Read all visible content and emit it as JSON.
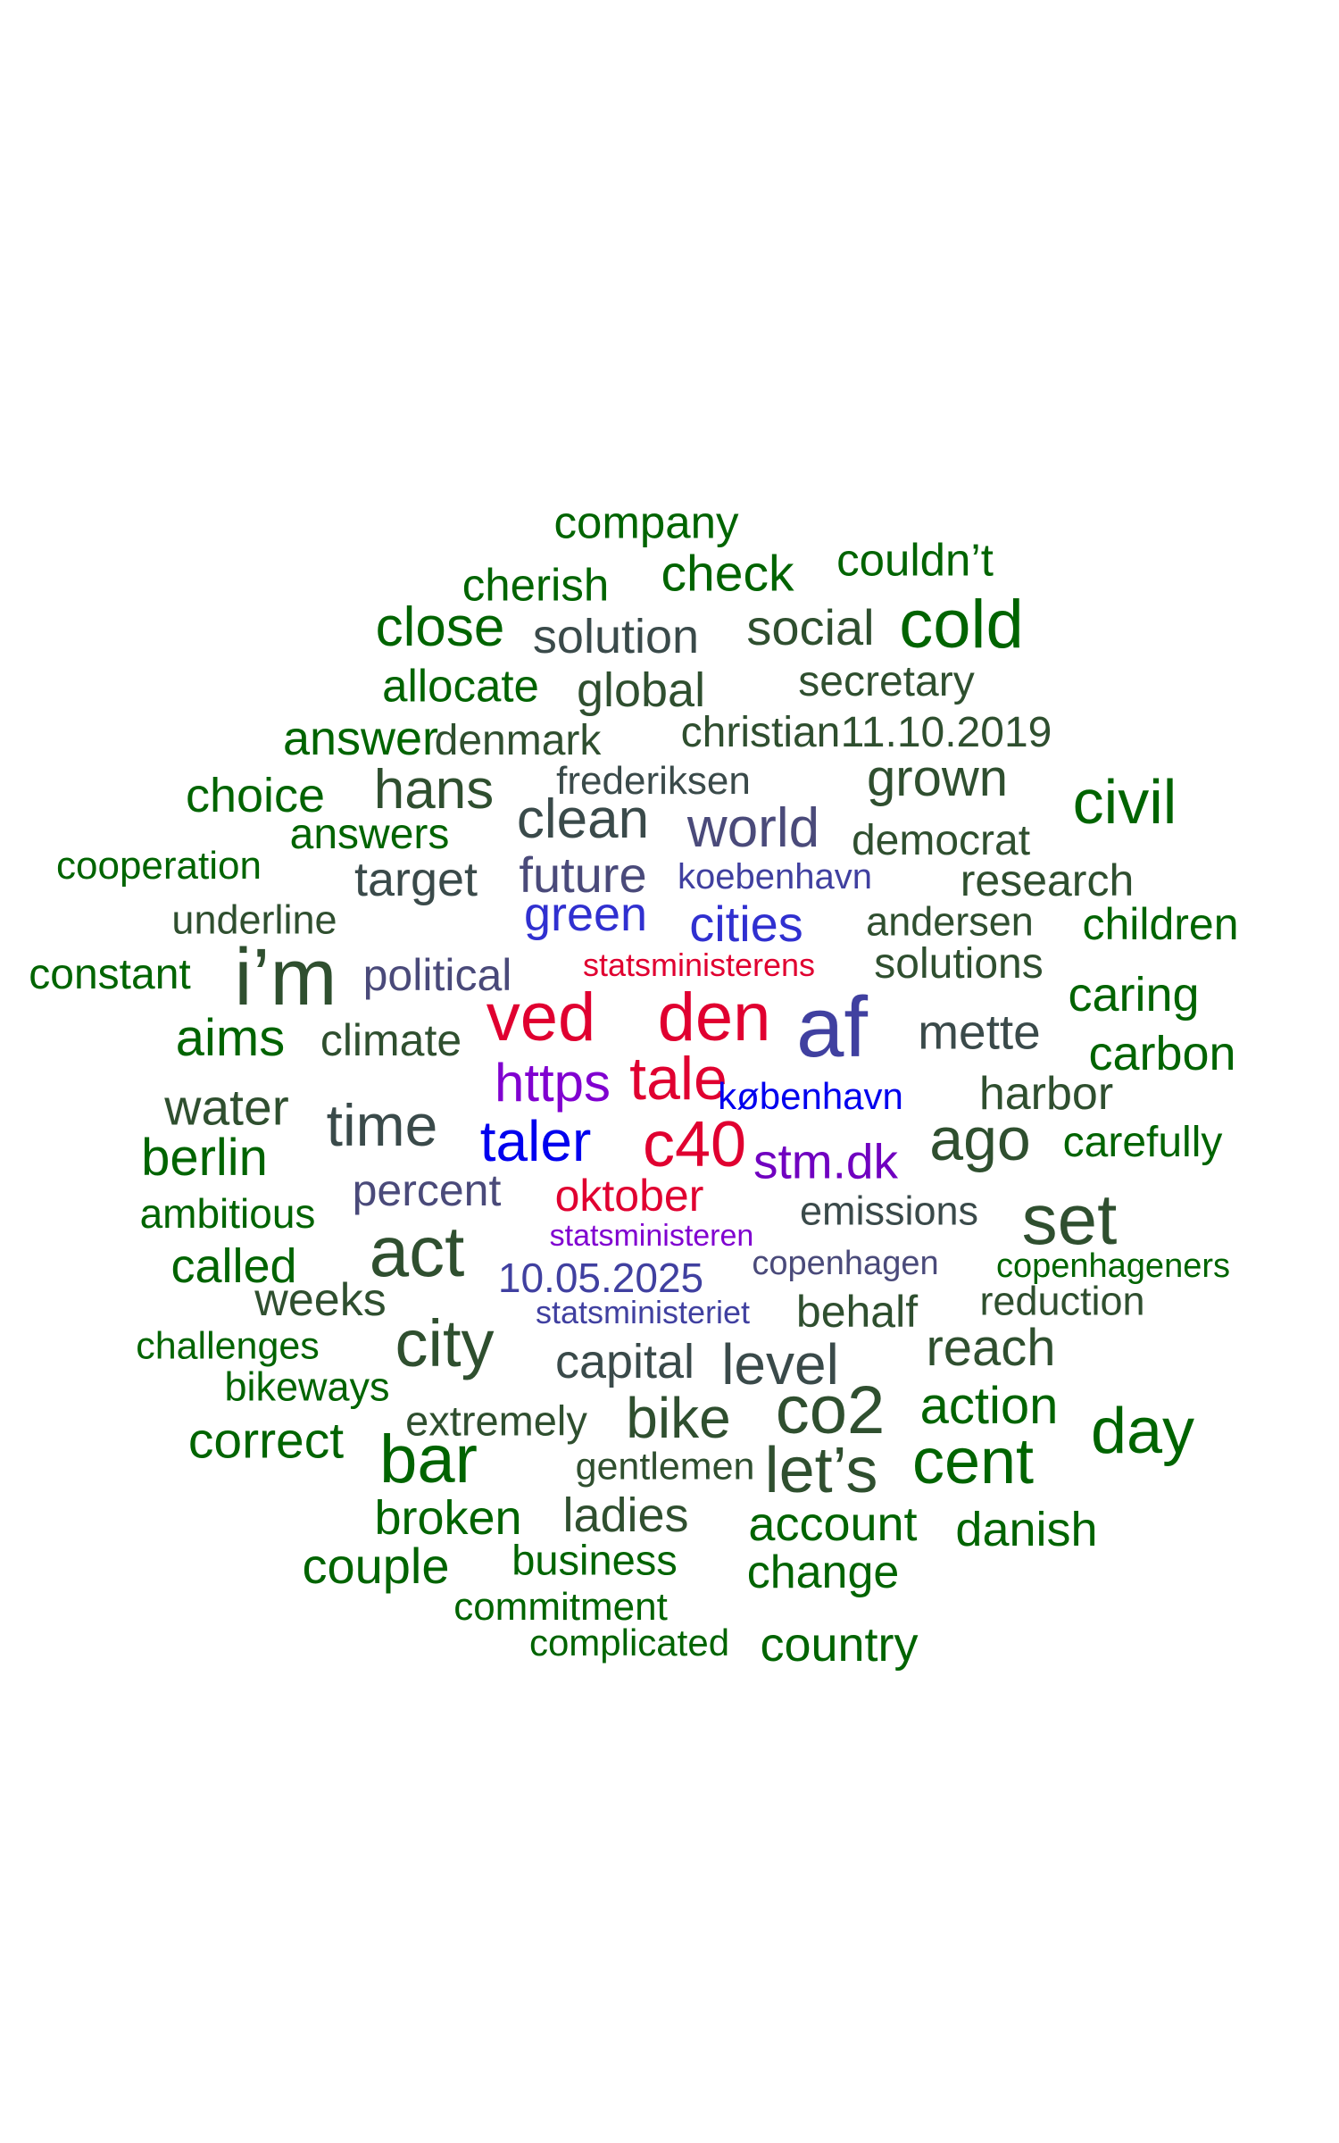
{
  "palette": {
    "dark_green": "#006400",
    "slate_green": "#2f4f2f",
    "slate": "#3a4a4a",
    "navy_slate": "#4a4a7a",
    "indigo": "#4040a0",
    "royal_blue": "#3030d0",
    "blue": "#0000ee",
    "violet": "#8000d0",
    "purple": "#7000c0",
    "red": "#e00030"
  },
  "words": [
    {
      "text": "company",
      "color": "#006400"
    },
    {
      "text": "cherish",
      "color": "#006400"
    },
    {
      "text": "check",
      "color": "#006400"
    },
    {
      "text": "couldn’t",
      "color": "#006400"
    },
    {
      "text": "close",
      "color": "#006400"
    },
    {
      "text": "solution",
      "color": "#3a4a4a"
    },
    {
      "text": "social",
      "color": "#2f4f2f"
    },
    {
      "text": "cold",
      "color": "#006400"
    },
    {
      "text": "allocate",
      "color": "#006400"
    },
    {
      "text": "global",
      "color": "#2f4f2f"
    },
    {
      "text": "secretary",
      "color": "#2f4f2f"
    },
    {
      "text": "answer",
      "color": "#006400"
    },
    {
      "text": "denmark",
      "color": "#2f4f2f"
    },
    {
      "text": "christian",
      "color": "#2f4f2f"
    },
    {
      "text": "11.10.2019",
      "color": "#2f4f2f"
    },
    {
      "text": "choice",
      "color": "#006400"
    },
    {
      "text": "hans",
      "color": "#2f4f2f"
    },
    {
      "text": "frederiksen",
      "color": "#3a4a4a"
    },
    {
      "text": "grown",
      "color": "#2f4f2f"
    },
    {
      "text": "civil",
      "color": "#006400"
    },
    {
      "text": "answers",
      "color": "#006400"
    },
    {
      "text": "clean",
      "color": "#3a4a4a"
    },
    {
      "text": "world",
      "color": "#4a4a7a"
    },
    {
      "text": "democrat",
      "color": "#2f4f2f"
    },
    {
      "text": "cooperation",
      "color": "#006400"
    },
    {
      "text": "target",
      "color": "#3a4a4a"
    },
    {
      "text": "future",
      "color": "#4a4a7a"
    },
    {
      "text": "koebenhavn",
      "color": "#4040a0"
    },
    {
      "text": "research",
      "color": "#2f4f2f"
    },
    {
      "text": "underline",
      "color": "#2f4f2f"
    },
    {
      "text": "green",
      "color": "#3030d0"
    },
    {
      "text": "cities",
      "color": "#3030d0"
    },
    {
      "text": "andersen",
      "color": "#2f4f2f"
    },
    {
      "text": "children",
      "color": "#006400"
    },
    {
      "text": "constant",
      "color": "#006400"
    },
    {
      "text": "i’m",
      "color": "#2f4f2f"
    },
    {
      "text": "political",
      "color": "#4a4a7a"
    },
    {
      "text": "statsministerens",
      "color": "#e00030"
    },
    {
      "text": "solutions",
      "color": "#2f4f2f"
    },
    {
      "text": "caring",
      "color": "#006400"
    },
    {
      "text": "ved",
      "color": "#e00030"
    },
    {
      "text": "den",
      "color": "#e00030"
    },
    {
      "text": "af",
      "color": "#4040a0"
    },
    {
      "text": "aims",
      "color": "#006400"
    },
    {
      "text": "climate",
      "color": "#2f4f2f"
    },
    {
      "text": "mette",
      "color": "#3a4a4a"
    },
    {
      "text": "carbon",
      "color": "#006400"
    },
    {
      "text": "https",
      "color": "#8000d0"
    },
    {
      "text": "tale",
      "color": "#e00030"
    },
    {
      "text": "københavn",
      "color": "#0000ee"
    },
    {
      "text": "harbor",
      "color": "#2f4f2f"
    },
    {
      "text": "water",
      "color": "#2f4f2f"
    },
    {
      "text": "time",
      "color": "#3a4a4a"
    },
    {
      "text": "ago",
      "color": "#2f4f2f"
    },
    {
      "text": "carefully",
      "color": "#006400"
    },
    {
      "text": "berlin",
      "color": "#006400"
    },
    {
      "text": "taler",
      "color": "#0000ee"
    },
    {
      "text": "c40",
      "color": "#e00030"
    },
    {
      "text": "stm.dk",
      "color": "#7000c0"
    },
    {
      "text": "percent",
      "color": "#4a4a7a"
    },
    {
      "text": "oktober",
      "color": "#e00030"
    },
    {
      "text": "emissions",
      "color": "#3a4a4a"
    },
    {
      "text": "ambitious",
      "color": "#006400"
    },
    {
      "text": "set",
      "color": "#2f4f2f"
    },
    {
      "text": "statsministeren",
      "color": "#8000d0"
    },
    {
      "text": "act",
      "color": "#2f4f2f"
    },
    {
      "text": "called",
      "color": "#006400"
    },
    {
      "text": "10.05.2025",
      "color": "#4040a0"
    },
    {
      "text": "copenhagen",
      "color": "#4a4a7a"
    },
    {
      "text": "copenhageners",
      "color": "#006400"
    },
    {
      "text": "weeks",
      "color": "#2f4f2f"
    },
    {
      "text": "statsministeriet",
      "color": "#4040a0"
    },
    {
      "text": "behalf",
      "color": "#2f4f2f"
    },
    {
      "text": "reduction",
      "color": "#2f4f2f"
    },
    {
      "text": "city",
      "color": "#2f4f2f"
    },
    {
      "text": "challenges",
      "color": "#006400"
    },
    {
      "text": "reach",
      "color": "#2f4f2f"
    },
    {
      "text": "capital",
      "color": "#3a4a4a"
    },
    {
      "text": "level",
      "color": "#3a4a4a"
    },
    {
      "text": "bikeways",
      "color": "#006400"
    },
    {
      "text": "co2",
      "color": "#2f4f2f"
    },
    {
      "text": "action",
      "color": "#006400"
    },
    {
      "text": "day",
      "color": "#006400"
    },
    {
      "text": "extremely",
      "color": "#2f4f2f"
    },
    {
      "text": "bike",
      "color": "#2f4f2f"
    },
    {
      "text": "correct",
      "color": "#006400"
    },
    {
      "text": "bar",
      "color": "#006400"
    },
    {
      "text": "gentlemen",
      "color": "#2f4f2f"
    },
    {
      "text": "cent",
      "color": "#006400"
    },
    {
      "text": "let’s",
      "color": "#2f4f2f"
    },
    {
      "text": "broken",
      "color": "#006400"
    },
    {
      "text": "ladies",
      "color": "#2f4f2f"
    },
    {
      "text": "account",
      "color": "#006400"
    },
    {
      "text": "danish",
      "color": "#006400"
    },
    {
      "text": "couple",
      "color": "#006400"
    },
    {
      "text": "business",
      "color": "#006400"
    },
    {
      "text": "change",
      "color": "#006400"
    },
    {
      "text": "commitment",
      "color": "#006400"
    },
    {
      "text": "complicated",
      "color": "#006400"
    },
    {
      "text": "country",
      "color": "#006400"
    }
  ]
}
